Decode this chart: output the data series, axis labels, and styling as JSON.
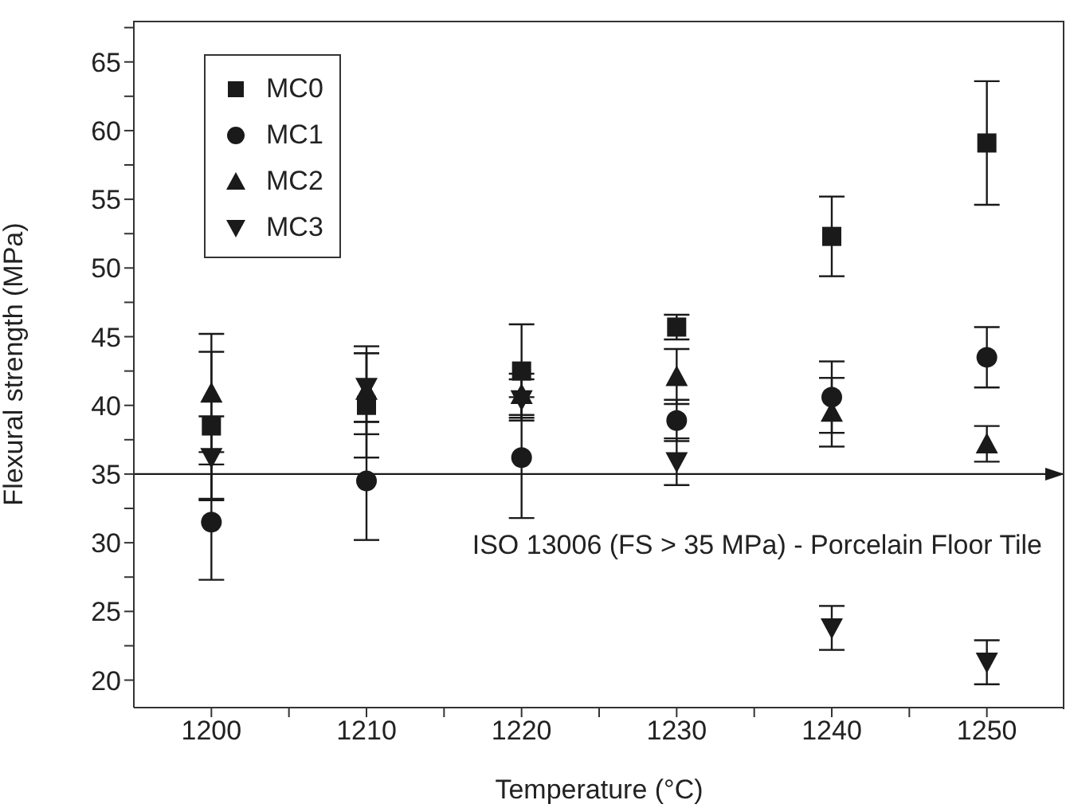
{
  "chart_data": {
    "type": "scatter",
    "xlabel": "Temperature (°C)",
    "ylabel": "Flexural strength (MPa)",
    "x": [
      1200,
      1210,
      1220,
      1230,
      1240,
      1250
    ],
    "xlim": [
      1195,
      1255
    ],
    "xticks": [
      1200,
      {
        "value": 1205,
        "label": null
      },
      1210,
      {
        "value": 1215,
        "label": null
      },
      1220,
      {
        "value": 1225,
        "label": null
      },
      1230,
      {
        "value": 1235,
        "label": null
      },
      1240,
      {
        "value": 1245,
        "label": null
      },
      1250
    ],
    "ylim": [
      18,
      68
    ],
    "yticks": [
      20,
      {
        "value": 22.5,
        "label": null
      },
      25,
      {
        "value": 27.5,
        "label": null
      },
      30,
      {
        "value": 32.5,
        "label": null
      },
      35,
      {
        "value": 37.5,
        "label": null
      },
      40,
      {
        "value": 42.5,
        "label": null
      },
      45,
      {
        "value": 47.5,
        "label": null
      },
      50,
      {
        "value": 52.5,
        "label": null
      },
      55,
      {
        "value": 57.5,
        "label": null
      },
      60,
      {
        "value": 62.5,
        "label": null
      },
      65,
      {
        "value": 67.5,
        "label": null
      }
    ],
    "series": [
      {
        "name": "MC0",
        "color": "#1a1a1a",
        "marker": "square",
        "values": [
          38.5,
          40.0,
          42.5,
          45.7,
          52.3,
          59.1
        ],
        "errors": [
          5.4,
          3.8,
          3.4,
          0.9,
          2.9,
          4.5
        ]
      },
      {
        "name": "MC1",
        "color": "#1a1a1a",
        "marker": "circle",
        "values": [
          31.5,
          34.5,
          36.2,
          38.9,
          40.6,
          43.5
        ],
        "errors": [
          4.2,
          4.3,
          4.4,
          1.5,
          2.6,
          2.2
        ]
      },
      {
        "name": "MC2",
        "color": "#1a1a1a",
        "marker": "triangle",
        "values": [
          40.9,
          41.1,
          40.8,
          42.1,
          39.5,
          37.2
        ],
        "errors": [
          4.3,
          3.2,
          1.5,
          2.0,
          2.5,
          1.3
        ]
      },
      {
        "name": "MC3",
        "color": "#1a1a1a",
        "marker": "triangle-down",
        "values": [
          36.2,
          41.3,
          40.4,
          35.9,
          23.8,
          21.3
        ],
        "errors": [
          3.0,
          2.5,
          1.5,
          1.7,
          1.6,
          1.6
        ]
      }
    ],
    "ref_lines": [
      {
        "axis": "y",
        "value": 35,
        "label": "ISO 13006 (FS > 35 MPa) - Porcelain Floor Tile",
        "color": "#1a1a1a"
      }
    ],
    "legend": "top left",
    "grid": false
  }
}
